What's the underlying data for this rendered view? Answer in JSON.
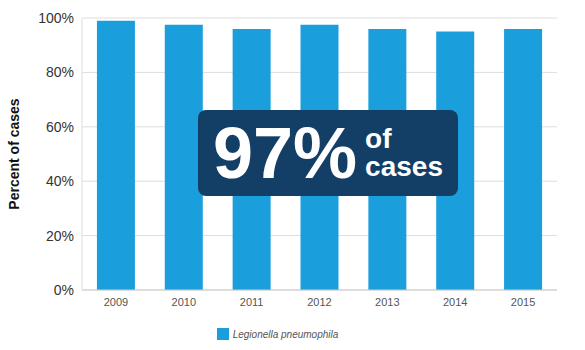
{
  "chart_data": {
    "type": "bar",
    "ylabel": "Percent of cases",
    "categories": [
      "2009",
      "2010",
      "2011",
      "2012",
      "2013",
      "2014",
      "2015"
    ],
    "series": [
      {
        "name": "Legionella pneumophila",
        "color": "#1a9fdc",
        "values": [
          99,
          97.5,
          96,
          97.5,
          96,
          95,
          96
        ]
      }
    ],
    "ylim": [
      0,
      100
    ],
    "yticks": [
      {
        "value": 0,
        "label": "0%"
      },
      {
        "value": 20,
        "label": "20%"
      },
      {
        "value": 40,
        "label": "40%"
      },
      {
        "value": 60,
        "label": "60%"
      },
      {
        "value": 80,
        "label": "80%"
      },
      {
        "value": 100,
        "label": "100%"
      }
    ],
    "grid": true,
    "legend": "bottom",
    "annotations": [
      "97%",
      "of cases"
    ]
  }
}
